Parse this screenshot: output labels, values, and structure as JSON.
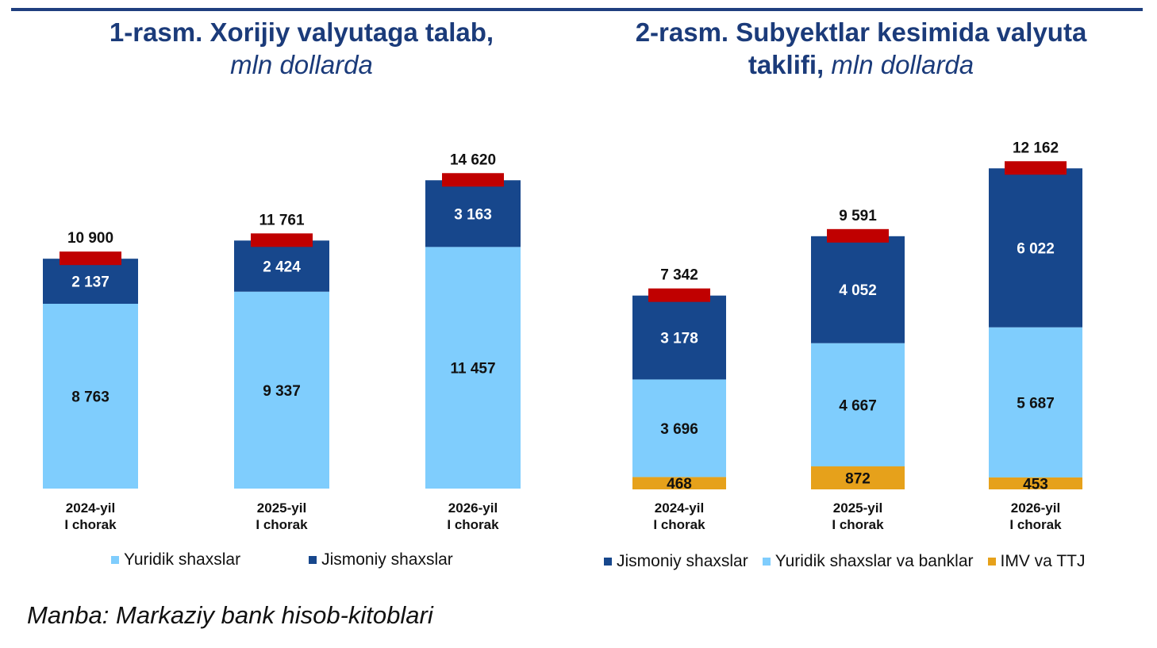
{
  "charts": [
    {
      "title_bold": "1-rasm. Xorijiy valyutaga talab,",
      "title_bold_tail": "",
      "title_italic": "mln dollarda"
    },
    {
      "title_bold": "2-rasm. Subyektlar kesimida valyuta",
      "title_bold_tail": "taklifi, ",
      "title_italic": "mln dollarda"
    }
  ],
  "source": "Manba: Markaziy bank hisob-kitoblari",
  "colors": {
    "light_blue": "#7fcdfd",
    "dark_blue": "#17478c",
    "orange": "#e6a11b",
    "red_marker": "#c00000"
  },
  "chart_data": [
    {
      "type": "bar",
      "stacked": true,
      "categories": [
        [
          "2024-yil",
          "I chorak"
        ],
        [
          "2025-yil",
          "I chorak"
        ],
        [
          "2026-yil",
          "I chorak"
        ]
      ],
      "series": [
        {
          "name": "Yuridik shaxslar",
          "color": "#7fcdfd",
          "values": [
            8763,
            9337,
            11457
          ],
          "labels": [
            "8 763",
            "9 337",
            "11 457"
          ]
        },
        {
          "name": "Jismoniy shaxslar",
          "color": "#17478c",
          "values": [
            2137,
            2424,
            3163
          ],
          "labels": [
            "2 137",
            "2 424",
            "3 163"
          ]
        }
      ],
      "totals": [
        10900,
        11761,
        14620
      ],
      "total_labels": [
        "10 900",
        "11 761",
        "14 620"
      ],
      "legend_position": "bottom"
    },
    {
      "type": "bar",
      "stacked": true,
      "categories": [
        [
          "2024-yil",
          "I chorak"
        ],
        [
          "2025-yil",
          "I chorak"
        ],
        [
          "2026-yil",
          "I chorak"
        ]
      ],
      "series": [
        {
          "name": "IMV va TTJ",
          "color": "#e6a11b",
          "values": [
            468,
            872,
            453
          ],
          "labels": [
            "468",
            "872",
            "453"
          ]
        },
        {
          "name": "Yuridik shaxslar va banklar",
          "color": "#7fcdfd",
          "values": [
            3696,
            4667,
            5687
          ],
          "labels": [
            "3 696",
            "4 667",
            "5 687"
          ]
        },
        {
          "name": "Jismoniy shaxslar",
          "color": "#17478c",
          "values": [
            3178,
            4052,
            6022
          ],
          "labels": [
            "3 178",
            "4 052",
            "6 022"
          ]
        }
      ],
      "legend_order": [
        "Jismoniy shaxslar",
        "Yuridik shaxslar va banklar",
        "IMV va TTJ"
      ],
      "totals": [
        7342,
        9591,
        12162
      ],
      "total_labels": [
        "7 342",
        "9 591",
        "12 162"
      ],
      "legend_position": "bottom"
    }
  ]
}
